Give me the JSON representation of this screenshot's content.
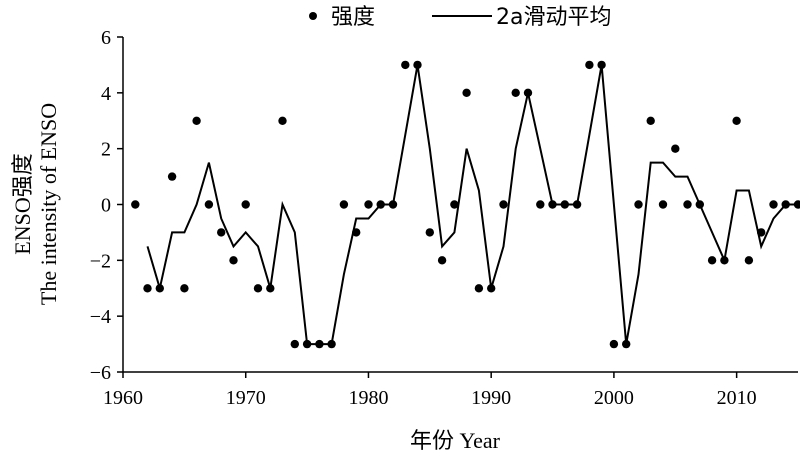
{
  "chart_data": {
    "type": "line",
    "xlabel": "年份 Year",
    "ylabel_line1": "ENSO强度",
    "ylabel_line2": "The intensity of ENSO",
    "xlim": [
      1960,
      2015
    ],
    "ylim": [
      -6,
      6
    ],
    "x_ticks": [
      1960,
      1970,
      1980,
      1990,
      2000,
      2010
    ],
    "y_ticks": [
      -6,
      -4,
      -2,
      0,
      2,
      4,
      6
    ],
    "grid": false,
    "legend_position": "top",
    "series": [
      {
        "name": "强度",
        "style": "points",
        "x": [
          1961,
          1962,
          1963,
          1964,
          1965,
          1966,
          1967,
          1968,
          1969,
          1970,
          1971,
          1972,
          1973,
          1974,
          1975,
          1976,
          1977,
          1978,
          1979,
          1980,
          1981,
          1982,
          1983,
          1984,
          1985,
          1986,
          1987,
          1988,
          1989,
          1990,
          1991,
          1992,
          1993,
          1994,
          1995,
          1996,
          1997,
          1998,
          1999,
          2000,
          2001,
          2002,
          2003,
          2004,
          2005,
          2006,
          2007,
          2008,
          2009,
          2010,
          2011,
          2012,
          2013,
          2014,
          2015
        ],
        "y": [
          0,
          -3,
          -3,
          1,
          -3,
          3,
          0,
          -1,
          -2,
          0,
          -3,
          -3,
          3,
          -5,
          -5,
          -5,
          -5,
          0,
          -1,
          0,
          0,
          0,
          5,
          5,
          -1,
          -2,
          0,
          4,
          -3,
          -3,
          0,
          4,
          4,
          0,
          0,
          0,
          0,
          5,
          5,
          -5,
          -5,
          0,
          3,
          0,
          2,
          0,
          0,
          -2,
          -2,
          3,
          -2,
          -1,
          0,
          0,
          0
        ]
      },
      {
        "name": "2a滑动平均",
        "style": "line",
        "x": [
          1962,
          1963,
          1964,
          1965,
          1966,
          1967,
          1968,
          1969,
          1970,
          1971,
          1972,
          1973,
          1974,
          1975,
          1976,
          1977,
          1978,
          1979,
          1980,
          1981,
          1982,
          1983,
          1984,
          1985,
          1986,
          1987,
          1988,
          1989,
          1990,
          1991,
          1992,
          1993,
          1994,
          1995,
          1996,
          1997,
          1998,
          1999,
          2000,
          2001,
          2002,
          2003,
          2004,
          2005,
          2006,
          2007,
          2008,
          2009,
          2010,
          2011,
          2012,
          2013,
          2014,
          2015
        ],
        "y": [
          -1.5,
          -3,
          -1,
          -1,
          0,
          1.5,
          -0.5,
          -1.5,
          -1,
          -1.5,
          -3,
          0,
          -1,
          -5,
          -5,
          -5,
          -2.5,
          -0.5,
          -0.5,
          0,
          0,
          2.5,
          5,
          2,
          -1.5,
          -1,
          2,
          0.5,
          -3,
          -1.5,
          2,
          4,
          2,
          0,
          0,
          0,
          2.5,
          5,
          0,
          -5,
          -2.5,
          1.5,
          1.5,
          1,
          1,
          0,
          -1,
          -2,
          0.5,
          0.5,
          -1.5,
          -0.5,
          0,
          0
        ]
      }
    ]
  }
}
